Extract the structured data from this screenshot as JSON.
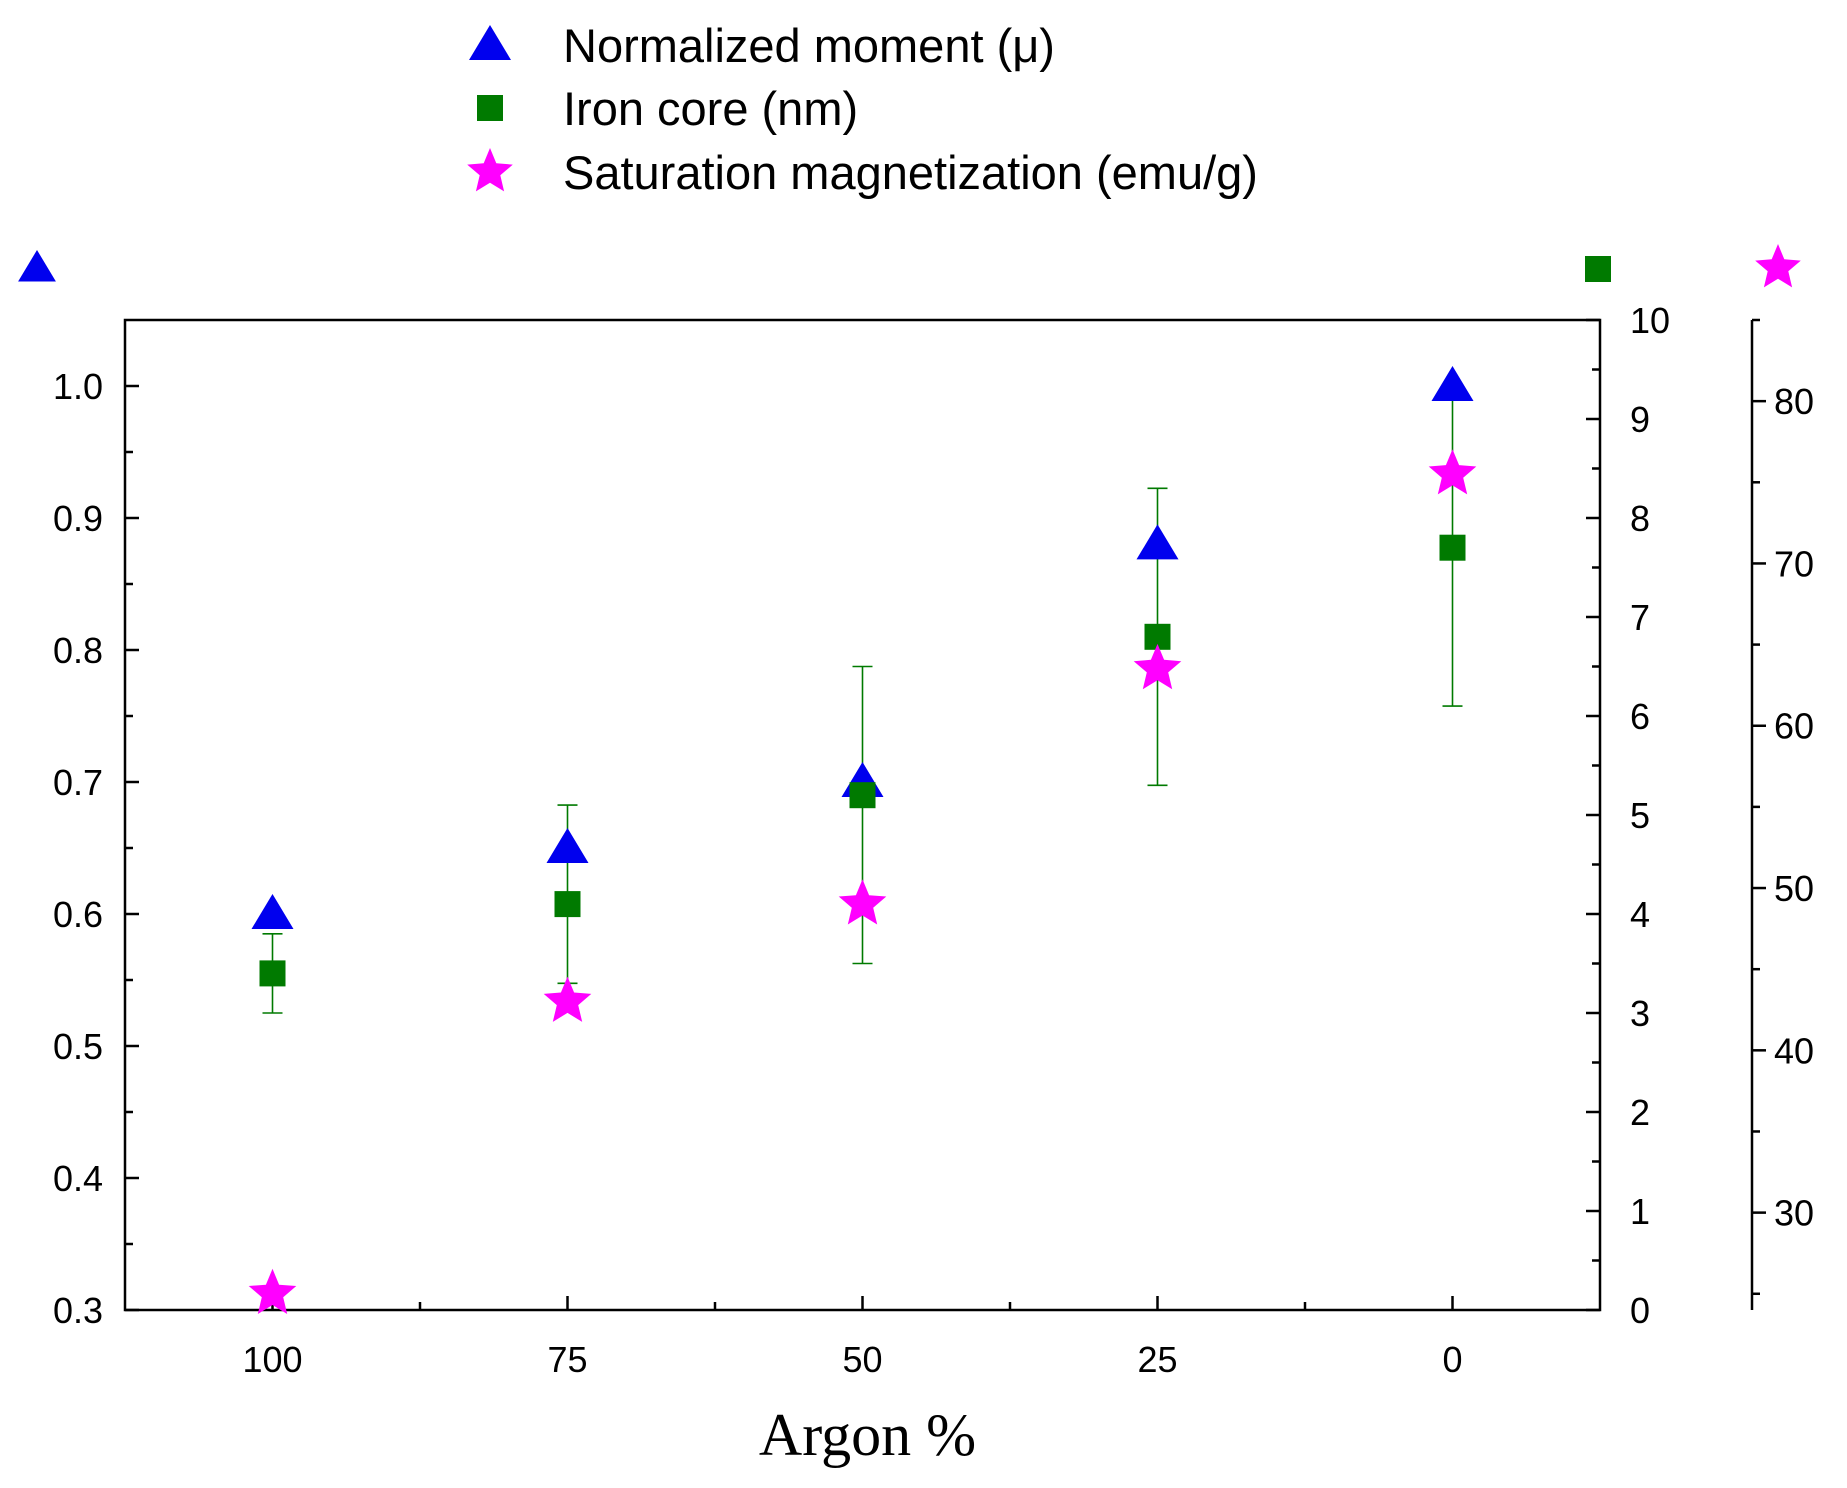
{
  "chart_data": {
    "type": "scatter",
    "title": "",
    "xlabel": "Argon %",
    "categories": [
      "100",
      "75",
      "50",
      "25",
      "0"
    ],
    "x": [
      100,
      75,
      50,
      25,
      0
    ],
    "xlim": [
      112.5,
      -12.5
    ],
    "x_minor_ticks": [
      87.5,
      62.5,
      37.5,
      12.5
    ],
    "grid": false,
    "legend_position": "top-center",
    "series": [
      {
        "name": "Normalized moment (μ)",
        "marker": "triangle",
        "color": "#0000ee",
        "axis": "left",
        "values": [
          0.6,
          0.65,
          0.7,
          0.88,
          1.0
        ],
        "error": [
          null,
          null,
          null,
          null,
          null
        ]
      },
      {
        "name": "Iron core (nm)",
        "marker": "square",
        "color": "#007a00",
        "axis": "right",
        "values": [
          3.4,
          4.1,
          5.2,
          6.8,
          7.7
        ],
        "error_low": [
          3.0,
          3.3,
          3.5,
          5.3,
          6.1
        ],
        "error_high": [
          3.8,
          5.1,
          6.5,
          8.3,
          9.3
        ]
      },
      {
        "name": "Saturation magnetization (emu/g)",
        "marker": "star",
        "color": "#ff00ff",
        "axis": "far-right",
        "values": [
          25.0,
          43.0,
          49.0,
          63.5,
          75.5
        ],
        "error": [
          null,
          null,
          null,
          null,
          null
        ]
      }
    ],
    "axes": {
      "left": {
        "ylim": [
          0.3,
          1.05
        ],
        "ticks": [
          0.3,
          0.4,
          0.5,
          0.6,
          0.7,
          0.8,
          0.9,
          1.0
        ],
        "tick_labels": [
          "0.3",
          "0.4",
          "0.5",
          "0.6",
          "0.7",
          "0.8",
          "0.9",
          "1.0"
        ],
        "minor_ticks": [
          0.35,
          0.45,
          0.55,
          0.65,
          0.75,
          0.85,
          0.95
        ],
        "indicator_marker": "triangle",
        "indicator_color": "#0000ee"
      },
      "right": {
        "ylim": [
          0,
          10
        ],
        "ticks": [
          0,
          1,
          2,
          3,
          4,
          5,
          6,
          7,
          8,
          9,
          10
        ],
        "tick_labels": [
          "0",
          "1",
          "2",
          "3",
          "4",
          "5",
          "6",
          "7",
          "8",
          "9",
          "10"
        ],
        "minor_ticks": [
          0.5,
          1.5,
          2.5,
          3.5,
          4.5,
          5.5,
          6.5,
          7.5,
          8.5,
          9.5
        ],
        "indicator_marker": "square",
        "indicator_color": "#007a00"
      },
      "far_right": {
        "ylim": [
          24,
          85
        ],
        "ticks": [
          30,
          40,
          50,
          60,
          70,
          80
        ],
        "tick_labels": [
          "30",
          "40",
          "50",
          "60",
          "70",
          "80"
        ],
        "minor_ticks": [
          25,
          35,
          45,
          55,
          65,
          75,
          85
        ],
        "indicator_marker": "star",
        "indicator_color": "#ff00ff"
      }
    }
  }
}
